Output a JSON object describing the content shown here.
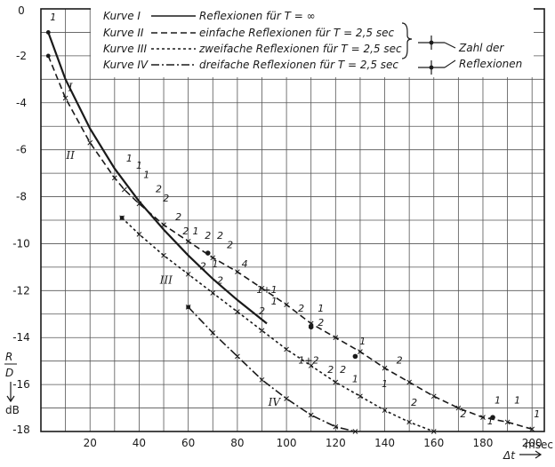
{
  "chart_data": {
    "type": "line",
    "xlim": [
      0,
      205
    ],
    "ylim": [
      -18,
      0
    ],
    "grid": true,
    "legend_position": "top",
    "xticks": [
      "20",
      "40",
      "60",
      "80",
      "100",
      "120",
      "140",
      "160",
      "180",
      "200"
    ],
    "x_unit": "msec",
    "xlabel": "Δt",
    "yticks": [
      "0",
      "-2",
      "-4",
      "-6",
      "-8",
      "-10",
      "-12",
      "-14",
      "-16",
      "-18"
    ],
    "y_unit": "dB",
    "ylabel": "R/D",
    "series": [
      {
        "name": "Reflexionen für T = ∞",
        "label": "Kurve I",
        "roman": "I",
        "style": "solid",
        "x": [
          3,
          10,
          20,
          30,
          40,
          50,
          60,
          70,
          80,
          92
        ],
        "y": [
          -1,
          -3,
          -5.1,
          -6.8,
          -8.2,
          -9.4,
          -10.5,
          -11.5,
          -12.4,
          -13.4
        ],
        "roman_at": [
          12,
          -3.5
        ]
      },
      {
        "name": "einfache Reflexionen für T = 2,5 sec",
        "label": "Kurve II",
        "roman": "II",
        "style": "dashed",
        "x": [
          3,
          10,
          20,
          30,
          34,
          40,
          50,
          60,
          70,
          80,
          90,
          100,
          110,
          120,
          130,
          140,
          150,
          160,
          170,
          180,
          190,
          200
        ],
        "y": [
          -2,
          -3.8,
          -5.7,
          -7.2,
          -7.7,
          -8.3,
          -9.2,
          -9.9,
          -10.6,
          -11.2,
          -11.9,
          -12.6,
          -13.4,
          -14.0,
          -14.6,
          -15.3,
          -15.9,
          -16.5,
          -17.0,
          -17.4,
          -17.6,
          -17.9
        ],
        "roman_at": [
          12,
          -6.4
        ]
      },
      {
        "name": "zweifache Reflexionen für T = 2,5 sec",
        "label": "Kurve III",
        "roman": "III",
        "style": "dotted",
        "x": [
          33,
          40,
          50,
          60,
          70,
          80,
          90,
          100,
          110,
          120,
          130,
          140,
          150,
          160
        ],
        "y": [
          -8.9,
          -9.6,
          -10.5,
          -11.3,
          -12.1,
          -12.9,
          -13.7,
          -14.5,
          -15.2,
          -15.9,
          -16.5,
          -17.1,
          -17.6,
          -18
        ],
        "roman_at": [
          51,
          -11.7
        ]
      },
      {
        "name": "dreifache Reflexionen für T = 2,5 sec",
        "label": "Kurve IV",
        "roman": "IV",
        "style": "dashdot",
        "x": [
          60,
          70,
          80,
          90,
          100,
          110,
          120,
          128
        ],
        "y": [
          -12.7,
          -13.8,
          -14.8,
          -15.8,
          -16.6,
          -17.3,
          -17.8,
          -18
        ],
        "roman_at": [
          95,
          -16.9
        ]
      }
    ],
    "legend_bracket_label": [
      "Zahl der",
      "Reflexionen"
    ],
    "annotations": [
      {
        "text": "1",
        "x": 5,
        "y": -0.5
      },
      {
        "text": "1",
        "x": 36,
        "y": -6.5
      },
      {
        "text": "1",
        "x": 40,
        "y": -6.8
      },
      {
        "text": "1",
        "x": 43,
        "y": -7.2
      },
      {
        "text": "2",
        "x": 48,
        "y": -7.8
      },
      {
        "text": "2",
        "x": 51,
        "y": -8.2
      },
      {
        "text": "2",
        "x": 56,
        "y": -9.0
      },
      {
        "text": "2",
        "x": 59,
        "y": -9.6
      },
      {
        "text": "1",
        "x": 63,
        "y": -9.6
      },
      {
        "text": "2",
        "x": 68,
        "y": -9.8
      },
      {
        "text": "2",
        "x": 73,
        "y": -9.8
      },
      {
        "text": "2",
        "x": 77,
        "y": -10.2
      },
      {
        "text": "2",
        "x": 66,
        "y": -11.1
      },
      {
        "text": "1",
        "x": 71,
        "y": -11.0
      },
      {
        "text": "2",
        "x": 73,
        "y": -11.7
      },
      {
        "text": "4",
        "x": 83,
        "y": -11.0
      },
      {
        "text": "1+1",
        "x": 92,
        "y": -12.1
      },
      {
        "text": "1",
        "x": 95,
        "y": -12.6
      },
      {
        "text": "2",
        "x": 90,
        "y": -13.0
      },
      {
        "text": "2",
        "x": 106,
        "y": -12.9
      },
      {
        "text": "1",
        "x": 114,
        "y": -12.9
      },
      {
        "text": "2",
        "x": 114,
        "y": -13.5
      },
      {
        "text": "1+2",
        "x": 109,
        "y": -15.1
      },
      {
        "text": "2",
        "x": 118,
        "y": -15.5
      },
      {
        "text": "2",
        "x": 123,
        "y": -15.5
      },
      {
        "text": "1",
        "x": 131,
        "y": -14.3
      },
      {
        "text": "1",
        "x": 128,
        "y": -15.9
      },
      {
        "text": "2",
        "x": 146,
        "y": -15.1
      },
      {
        "text": "1",
        "x": 140,
        "y": -16.1
      },
      {
        "text": "2",
        "x": 152,
        "y": -16.9
      },
      {
        "text": "1",
        "x": 186,
        "y": -16.8
      },
      {
        "text": "1",
        "x": 183,
        "y": -17.7
      },
      {
        "text": "1",
        "x": 194,
        "y": -16.8
      },
      {
        "text": "2",
        "x": 172,
        "y": -17.4
      },
      {
        "text": "1",
        "x": 202,
        "y": -17.4
      }
    ]
  }
}
